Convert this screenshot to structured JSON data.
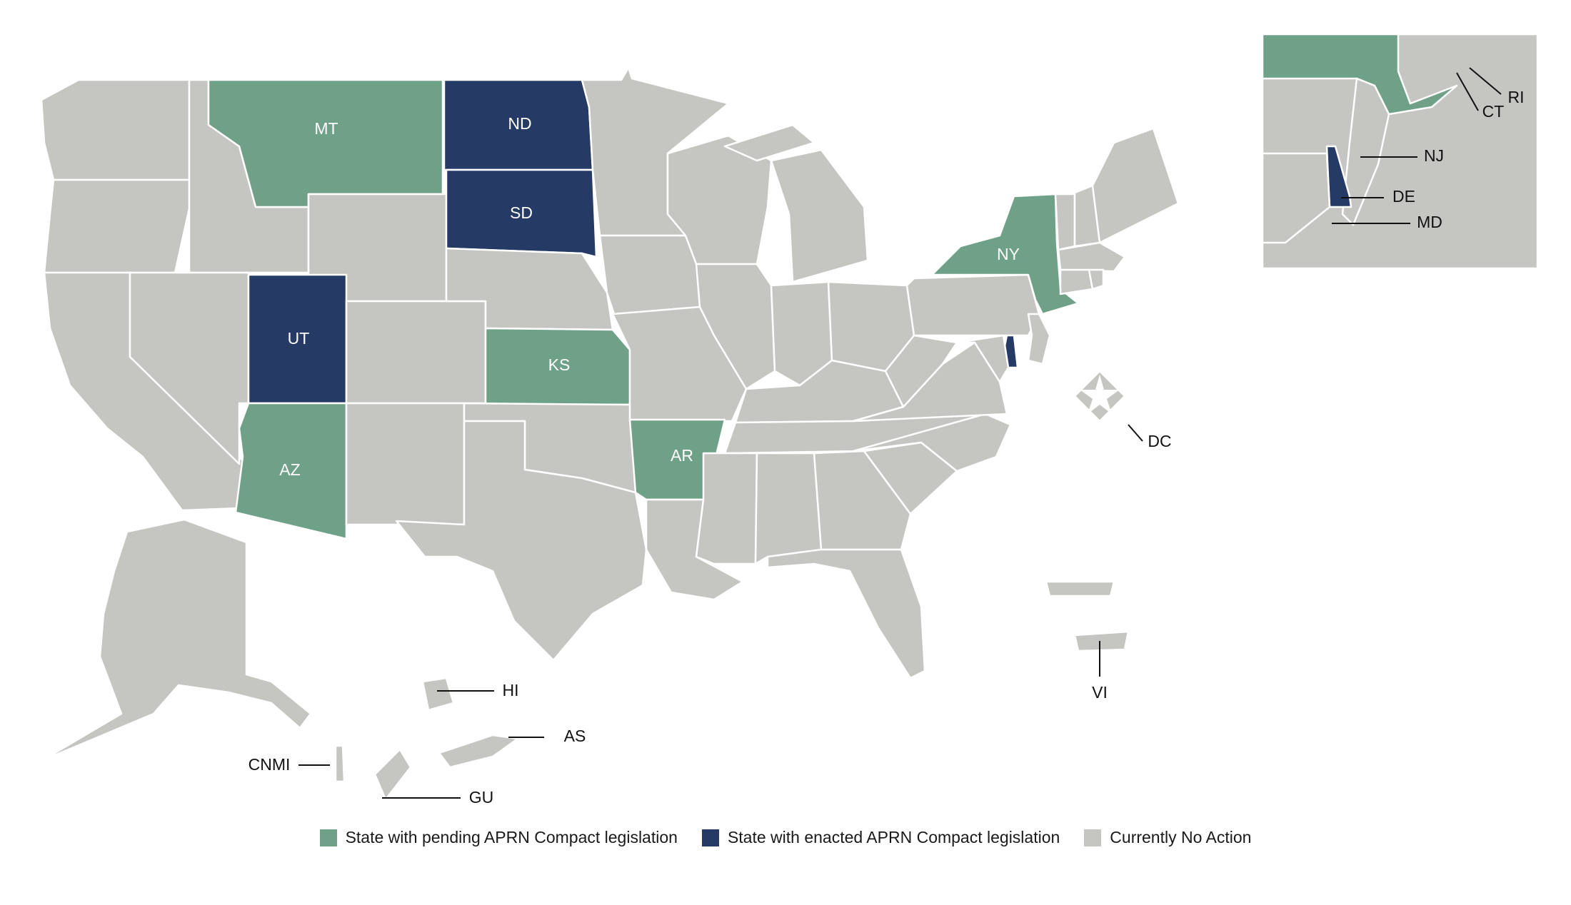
{
  "colors": {
    "pending": "#6fa188",
    "enacted": "#253a65",
    "none": "#c5c5c1"
  },
  "state_labels": {
    "MT": "MT",
    "ND": "ND",
    "SD": "SD",
    "UT": "UT",
    "KS": "KS",
    "AZ": "AZ",
    "AR": "AR",
    "NY": "NY"
  },
  "callouts": {
    "HI": "HI",
    "AS": "AS",
    "CNMI": "CNMI",
    "GU": "GU",
    "VI": "VI",
    "DC": "DC",
    "RI": "RI",
    "CT": "CT",
    "NJ": "NJ",
    "DE": "DE",
    "MD": "MD"
  },
  "legend": [
    {
      "key": "pending",
      "label": "State with pending APRN Compact legislation"
    },
    {
      "key": "enacted",
      "label": "State with enacted APRN Compact legislation"
    },
    {
      "key": "none",
      "label": "Currently No Action"
    }
  ],
  "status": {
    "pending": [
      "MT",
      "KS",
      "AZ",
      "AR",
      "NY"
    ],
    "enacted": [
      "ND",
      "SD",
      "UT",
      "DE"
    ]
  }
}
